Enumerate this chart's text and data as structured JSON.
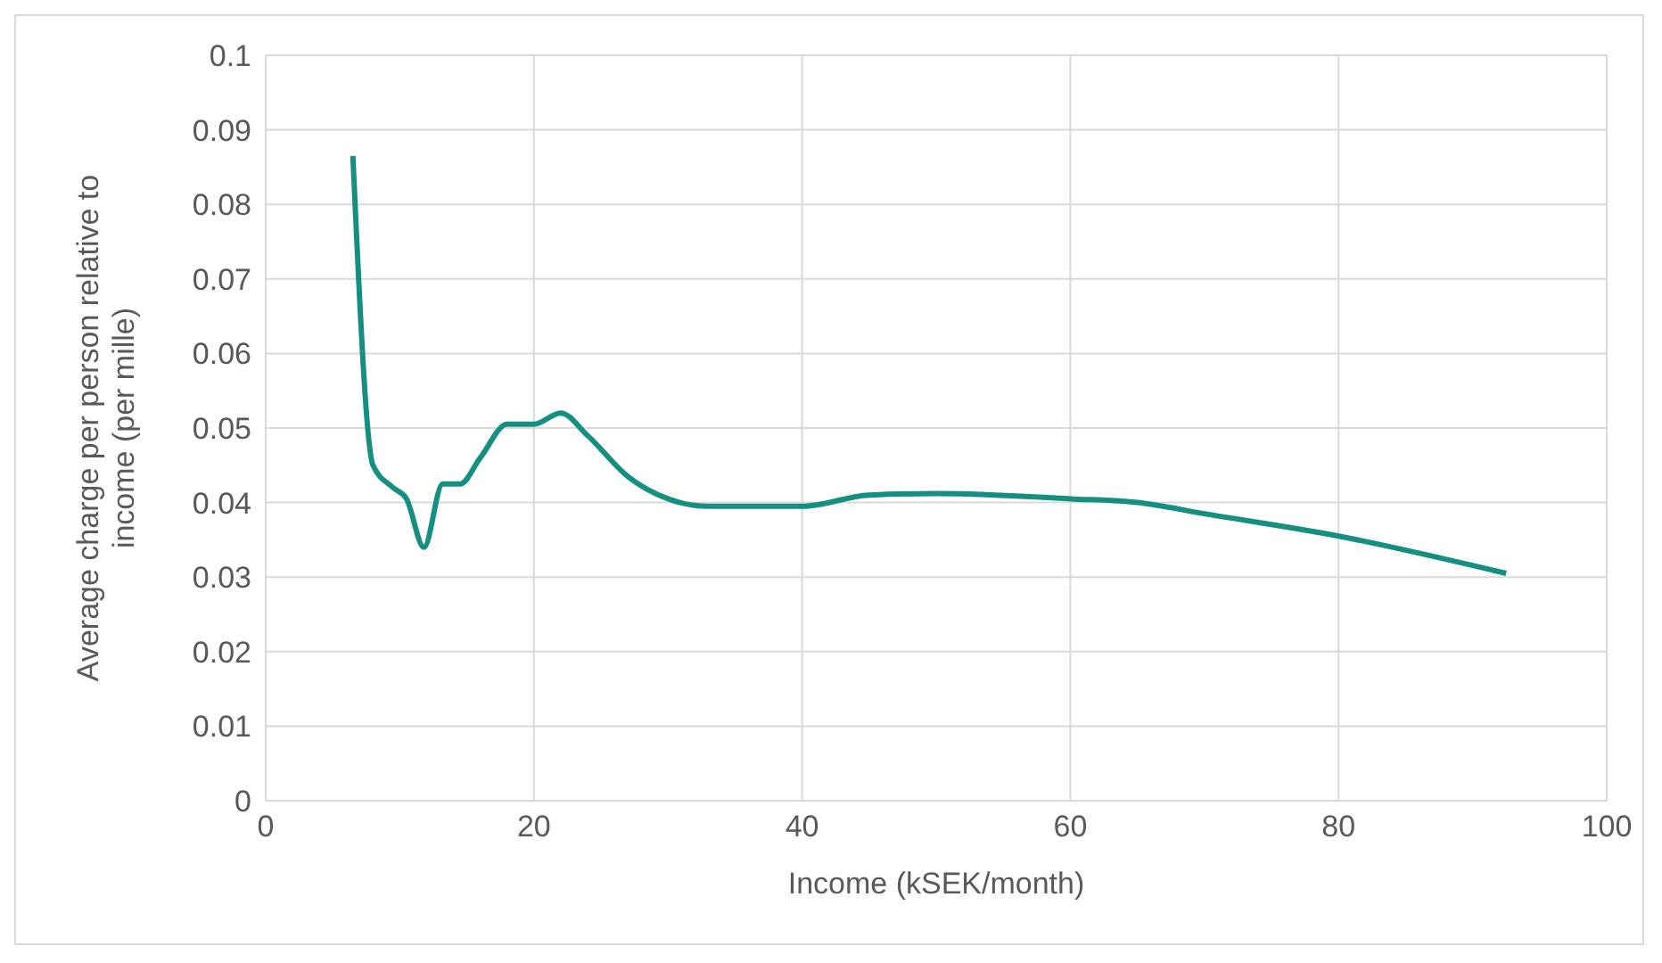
{
  "chart_data": {
    "type": "line",
    "xlabel": "Income (kSEK/month)",
    "ylabel": "Average charge per person relative to income (per mille)",
    "series": [
      {
        "color": "#148f80",
        "x": [
          6.5,
          8,
          9.5,
          10.5,
          11.8,
          13.2,
          14.5,
          16,
          18,
          20,
          22,
          24,
          27,
          30,
          33,
          40,
          45,
          50,
          60,
          65,
          70,
          80,
          92.5
        ],
        "values": [
          0.0865,
          0.045,
          0.042,
          0.0405,
          0.034,
          0.0425,
          0.0425,
          0.046,
          0.0505,
          0.0505,
          0.052,
          0.049,
          0.0435,
          0.0405,
          0.0395,
          0.0395,
          0.041,
          0.0412,
          0.0405,
          0.04,
          0.0385,
          0.0355,
          0.0305
        ]
      }
    ],
    "xlim": [
      0,
      100
    ],
    "xticks": [
      0,
      20,
      40,
      60,
      80,
      100
    ],
    "ylim": [
      0,
      0.1
    ],
    "yticks": [
      0,
      0.01,
      0.02,
      0.03,
      0.04,
      0.05,
      0.06,
      0.07,
      0.08,
      0.09,
      0.1
    ],
    "grid": true,
    "legend": false,
    "marker": "none",
    "line_style": "solid"
  }
}
